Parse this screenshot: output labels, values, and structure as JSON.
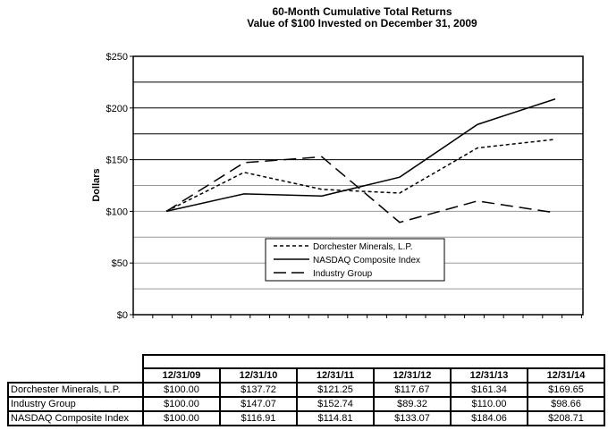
{
  "chart_data": {
    "type": "line",
    "title": "60-Month Cumulative Total Returns",
    "subtitle": "Value of $100 Invested on December 31, 2009",
    "xlabel": "",
    "ylabel": "Dollars",
    "ylim": [
      0,
      250
    ],
    "yticks": [
      "$0",
      "$50",
      "$100",
      "$150",
      "$200",
      "$250"
    ],
    "grid": true,
    "legend_position": "lower-center",
    "categories": [
      "12/31/09",
      "12/31/10",
      "12/31/11",
      "12/31/12",
      "12/31/13",
      "12/31/14"
    ],
    "series": [
      {
        "name": "Dorchester Minerals, L.P.",
        "style": "dotted",
        "values": [
          100.0,
          137.72,
          121.25,
          117.67,
          161.34,
          169.65
        ]
      },
      {
        "name": "NASDAQ Composite Index",
        "style": "solid",
        "values": [
          100.0,
          116.91,
          114.81,
          133.07,
          184.06,
          208.71
        ]
      },
      {
        "name": "Industry Group",
        "style": "dashed",
        "values": [
          100.0,
          147.07,
          152.74,
          89.32,
          110.0,
          98.66
        ]
      }
    ]
  },
  "table": {
    "headers": [
      "12/31/09",
      "12/31/10",
      "12/31/11",
      "12/31/12",
      "12/31/13",
      "12/31/14"
    ],
    "rows": [
      {
        "label": "Dorchester Minerals, L.P.",
        "cells": [
          "$100.00",
          "$137.72",
          "$121.25",
          "$117.67",
          "$161.34",
          "$169.65"
        ]
      },
      {
        "label": "Industry Group",
        "cells": [
          "$100.00",
          "$147.07",
          "$152.74",
          "$89.32",
          "$110.00",
          "$98.66"
        ]
      },
      {
        "label": "NASDAQ Composite Index",
        "cells": [
          "$100.00",
          "$116.91",
          "$114.81",
          "$133.07",
          "$184.06",
          "$208.71"
        ]
      }
    ]
  },
  "colors": {
    "line": "#000000",
    "grid_dark": "#000000",
    "grid_light": "#999999"
  }
}
